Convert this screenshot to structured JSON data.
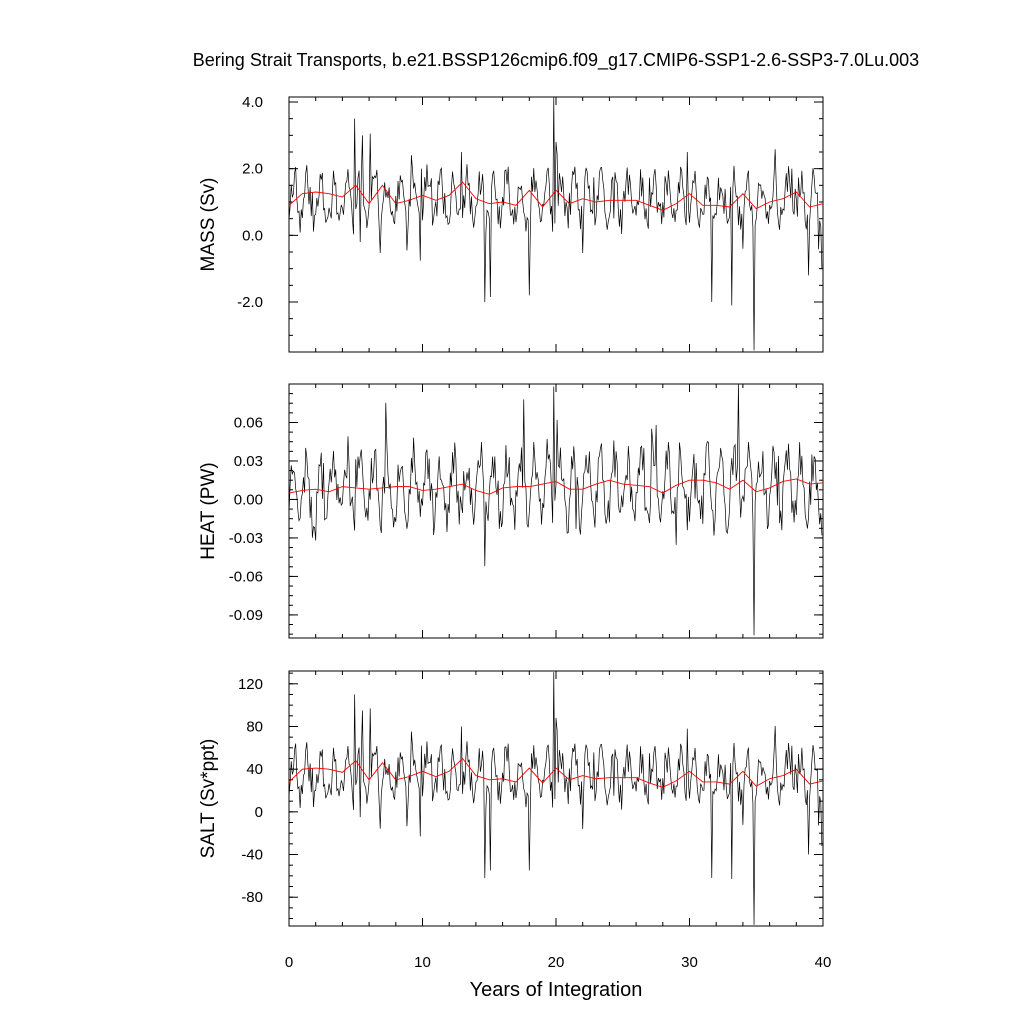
{
  "chart_data": {
    "type": "line",
    "title": "Bering Strait Transports, b.e21.BSSP126cmip6.f09_g17.CMIP6-SSP1-2.6-SSP3-7.0Lu.003",
    "xlabel": "Years of Integration",
    "xlim": [
      0,
      40
    ],
    "xticks": [
      0,
      10,
      20,
      30,
      40
    ],
    "xtick_labels": [
      "0",
      "10",
      "20",
      "30",
      "40"
    ],
    "grid": false,
    "line_colors": {
      "monthly": "#000000",
      "annual_mean": "#ff0000"
    },
    "panels": [
      {
        "name": "mass",
        "ylabel": "MASS (Sv)",
        "ylim": [
          -3.5,
          4.15
        ],
        "yticks": [
          4.0,
          2.0,
          0.0,
          -2.0
        ],
        "ytick_labels": [
          "4.0",
          "2.0",
          "0.0",
          "-2.0"
        ],
        "annual_mean": [
          0.9,
          1.25,
          1.3,
          1.25,
          1.15,
          1.5,
          0.95,
          1.5,
          0.95,
          1.05,
          1.2,
          1.05,
          1.2,
          1.6,
          1.1,
          0.95,
          1.0,
          0.9,
          1.35,
          0.85,
          1.35,
          0.95,
          1.1,
          1.0,
          1.05,
          1.05,
          1.05,
          0.9,
          0.75,
          0.95,
          1.25,
          0.9,
          0.9,
          0.85,
          1.25,
          0.8,
          1.0,
          1.1,
          1.3,
          0.85,
          0.95
        ],
        "monthly_seed": 11,
        "monthly_center": 1.05,
        "monthly_amplitude": 0.6,
        "monthly_noise": 0.35,
        "monthly_clip": [
          -3.45,
          4.15
        ],
        "spikes": [
          {
            "x": 4.95,
            "y": 3.5
          },
          {
            "x": 5.3,
            "y": -0.2
          },
          {
            "x": 5.5,
            "y": 3.0
          },
          {
            "x": 6.05,
            "y": 3.05
          },
          {
            "x": 9.9,
            "y": 2.0
          },
          {
            "x": 12.9,
            "y": 2.5
          },
          {
            "x": 14.7,
            "y": -2.0
          },
          {
            "x": 15.1,
            "y": -1.85
          },
          {
            "x": 18.0,
            "y": -1.8
          },
          {
            "x": 19.8,
            "y": 4.15
          },
          {
            "x": 20.0,
            "y": 2.8
          },
          {
            "x": 29.8,
            "y": 2.5
          },
          {
            "x": 31.7,
            "y": -2.0
          },
          {
            "x": 33.2,
            "y": -2.1
          },
          {
            "x": 34.8,
            "y": -3.45
          },
          {
            "x": 37.7,
            "y": 2.0
          },
          {
            "x": 38.9,
            "y": -1.2
          },
          {
            "x": 39.9,
            "y": 2.8
          },
          {
            "x": 39.95,
            "y": -1.0
          },
          {
            "x": 0.5,
            "y": 2.05
          }
        ]
      },
      {
        "name": "heat",
        "ylabel": "HEAT (PW)",
        "ylim": [
          -0.108,
          0.09
        ],
        "yticks": [
          0.06,
          0.03,
          0.0,
          -0.03,
          -0.06,
          -0.09
        ],
        "ytick_labels": [
          "0.06",
          "0.03",
          "0.00",
          "-0.03",
          "-0.06",
          "-0.09"
        ],
        "annual_mean": [
          0.005,
          0.007,
          0.008,
          0.006,
          0.01,
          0.009,
          0.008,
          0.009,
          0.01,
          0.01,
          0.007,
          0.008,
          0.01,
          0.012,
          0.007,
          0.004,
          0.009,
          0.01,
          0.01,
          0.012,
          0.014,
          0.008,
          0.008,
          0.012,
          0.015,
          0.012,
          0.011,
          0.01,
          0.005,
          0.011,
          0.015,
          0.015,
          0.013,
          0.008,
          0.015,
          0.006,
          0.009,
          0.014,
          0.016,
          0.012,
          0.013
        ],
        "monthly_seed": 23,
        "monthly_center": 0.01,
        "monthly_amplitude": 0.022,
        "monthly_noise": 0.012,
        "monthly_clip": [
          -0.106,
          0.09
        ],
        "spikes": [
          {
            "x": 14.7,
            "y": -0.052
          },
          {
            "x": 17.6,
            "y": 0.078
          },
          {
            "x": 19.8,
            "y": 0.088
          },
          {
            "x": 20.1,
            "y": 0.062
          },
          {
            "x": 33.7,
            "y": 0.09
          },
          {
            "x": 34.8,
            "y": -0.106
          },
          {
            "x": 27.5,
            "y": 0.058
          },
          {
            "x": 39.9,
            "y": -0.028
          }
        ]
      },
      {
        "name": "salt",
        "ylabel": "SALT (Sv*ppt)",
        "ylim": [
          -107,
          132
        ],
        "yticks": [
          120,
          80,
          40,
          0,
          -40,
          -80
        ],
        "ytick_labels": [
          "120",
          "80",
          "40",
          "0",
          "-40",
          "-80"
        ],
        "annual_mean": [
          28,
          40,
          41,
          40,
          37,
          48,
          30,
          46,
          30,
          33,
          38,
          33,
          38,
          50,
          34,
          30,
          31,
          28,
          41,
          27,
          41,
          30,
          34,
          31,
          32,
          32,
          32,
          27,
          23,
          29,
          38,
          28,
          28,
          26,
          38,
          24,
          31,
          34,
          40,
          26,
          29
        ],
        "monthly_seed": 11,
        "monthly_center": 33,
        "monthly_amplitude": 18,
        "monthly_noise": 11,
        "monthly_clip": [
          -106,
          131
        ],
        "spikes": [
          {
            "x": 4.95,
            "y": 110
          },
          {
            "x": 5.3,
            "y": -5
          },
          {
            "x": 5.5,
            "y": 95
          },
          {
            "x": 6.05,
            "y": 97
          },
          {
            "x": 9.9,
            "y": 62
          },
          {
            "x": 12.9,
            "y": 80
          },
          {
            "x": 14.7,
            "y": -62
          },
          {
            "x": 15.1,
            "y": -55
          },
          {
            "x": 18.0,
            "y": -55
          },
          {
            "x": 19.8,
            "y": 131
          },
          {
            "x": 20.0,
            "y": 88
          },
          {
            "x": 29.8,
            "y": 78
          },
          {
            "x": 31.7,
            "y": -62
          },
          {
            "x": 33.2,
            "y": -63
          },
          {
            "x": 34.8,
            "y": -106
          },
          {
            "x": 37.7,
            "y": 62
          },
          {
            "x": 38.9,
            "y": -40
          },
          {
            "x": 39.9,
            "y": 88
          },
          {
            "x": 39.95,
            "y": -32
          },
          {
            "x": 0.5,
            "y": 64
          }
        ]
      }
    ]
  }
}
